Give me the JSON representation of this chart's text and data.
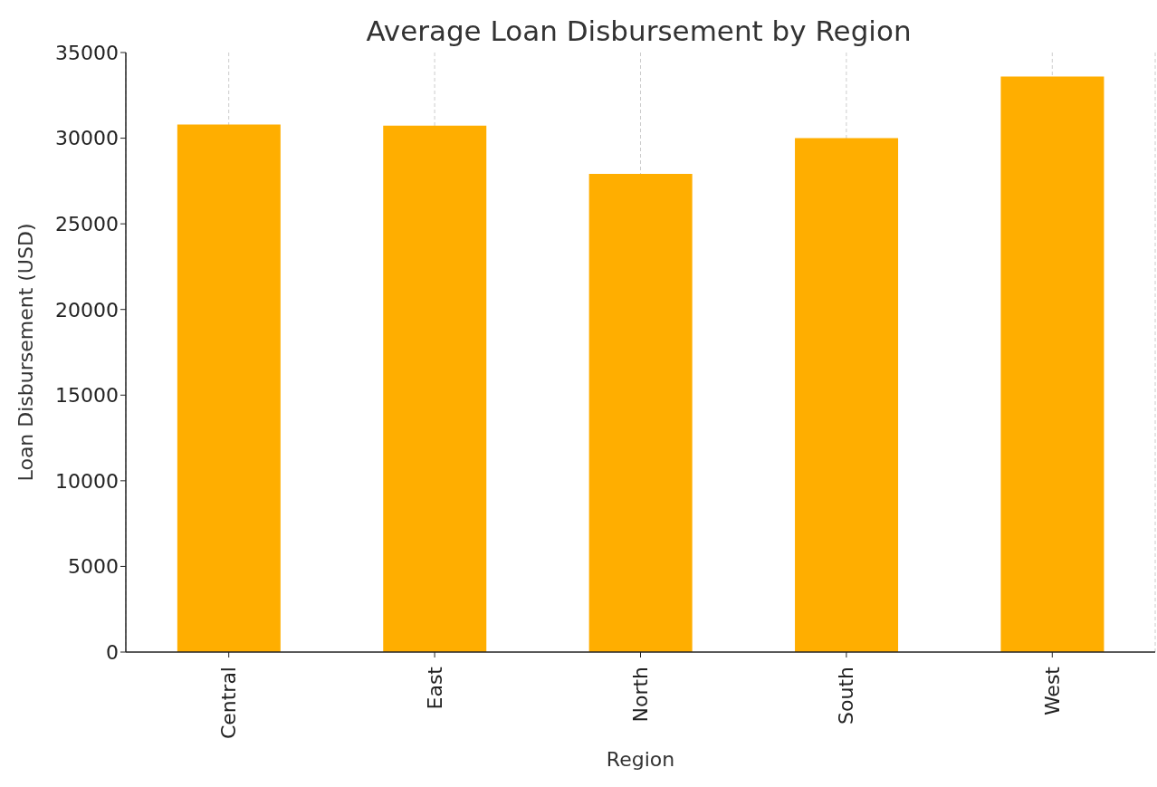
{
  "chart_data": {
    "type": "bar",
    "title": "Average Loan Disbursement by Region",
    "xlabel": "Region",
    "ylabel": "Loan Disbursement (USD)",
    "categories": [
      "Central",
      "East",
      "North",
      "South",
      "West"
    ],
    "values": [
      30800,
      30730,
      27910,
      30010,
      33600
    ],
    "color": "#ffae00",
    "ylim": [
      0,
      35000
    ],
    "yticks": [
      0,
      5000,
      10000,
      15000,
      20000,
      25000,
      30000,
      35000
    ],
    "grid": "x",
    "legend": false
  }
}
